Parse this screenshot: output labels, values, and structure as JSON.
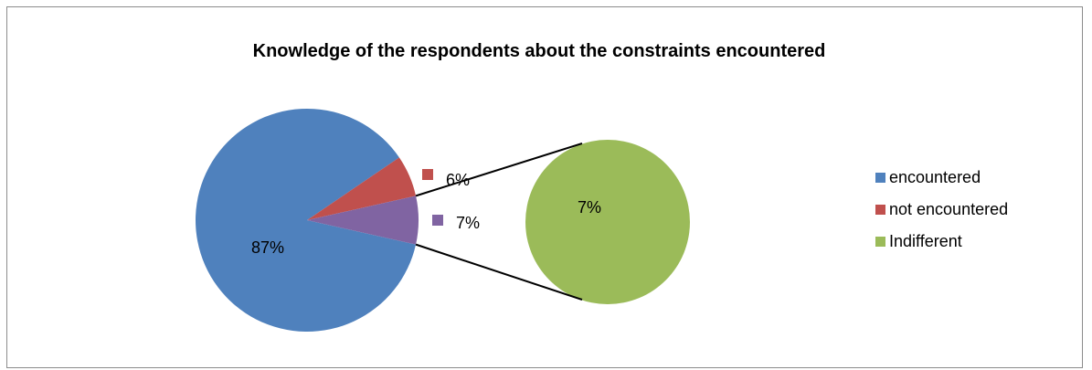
{
  "chart_data": {
    "type": "pie",
    "subtype": "pie-of-pie",
    "title": "Knowledge of the respondents about the constraints encountered",
    "categories": [
      "encountered",
      "not encountered",
      "Indifferent"
    ],
    "values": [
      87,
      6,
      7
    ],
    "labels": [
      "87%",
      "6%",
      "7%"
    ],
    "secondary": {
      "category": "Indifferent",
      "value": 7,
      "label": "7%"
    },
    "colors": [
      "#4f81bd",
      "#c0504d",
      "#8064a2",
      "#9bbb59"
    ],
    "legend_position": "right"
  }
}
